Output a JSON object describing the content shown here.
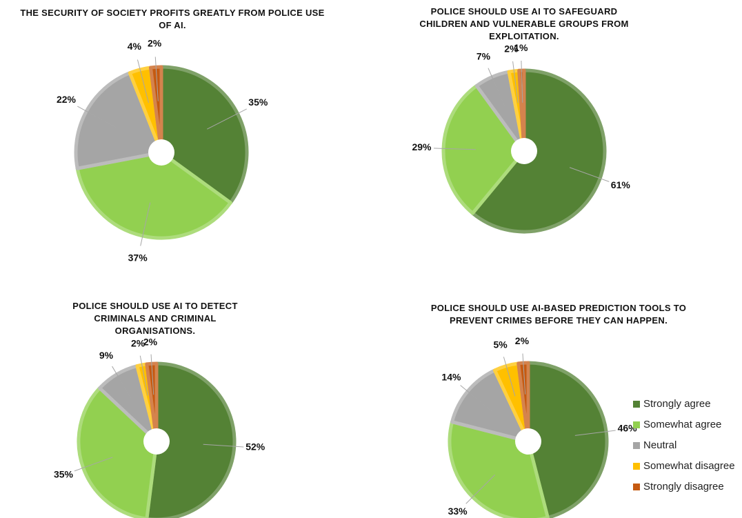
{
  "legend": {
    "labels": [
      "Strongly agree",
      "Somewhat agree",
      "Neutral",
      "Somewhat  disagree",
      "Strongly disagree"
    ],
    "colors": [
      "#548235",
      "#92d050",
      "#a5a5a5",
      "#ffc000",
      "#c55a11"
    ]
  },
  "chart_data": [
    {
      "type": "pie",
      "title": "THE SECURITY OF SOCIETY PROFITS GREATLY FROM POLICE USE OF AI.",
      "values": [
        35,
        37,
        22,
        4,
        2
      ],
      "value_labels": [
        "35%",
        "37%",
        "22%",
        "4%",
        "2%"
      ]
    },
    {
      "type": "pie",
      "title": "POLICE SHOULD USE AI TO SAFEGUARD CHILDREN AND VULNERABLE GROUPS FROM EXPLOITATION.",
      "values": [
        61,
        29,
        7,
        2,
        1
      ],
      "value_labels": [
        "61%",
        "29%",
        "7%",
        "2%",
        "1%"
      ]
    },
    {
      "type": "pie",
      "title": "POLICE SHOULD USE AI TO DETECT CRIMINALS AND CRIMINAL ORGANISATIONS.",
      "values": [
        52,
        35,
        9,
        2,
        2
      ],
      "value_labels": [
        "52%",
        "35%",
        "9%",
        "2%",
        "2%"
      ]
    },
    {
      "type": "pie",
      "title": "POLICE SHOULD USE AI-BASED PREDICTION TOOLS TO PREVENT CRIMES BEFORE THEY CAN HAPPEN.",
      "values": [
        46,
        33,
        14,
        5,
        2
      ],
      "value_labels": [
        "46%",
        "33%",
        "14%",
        "5%",
        "2%"
      ]
    }
  ]
}
